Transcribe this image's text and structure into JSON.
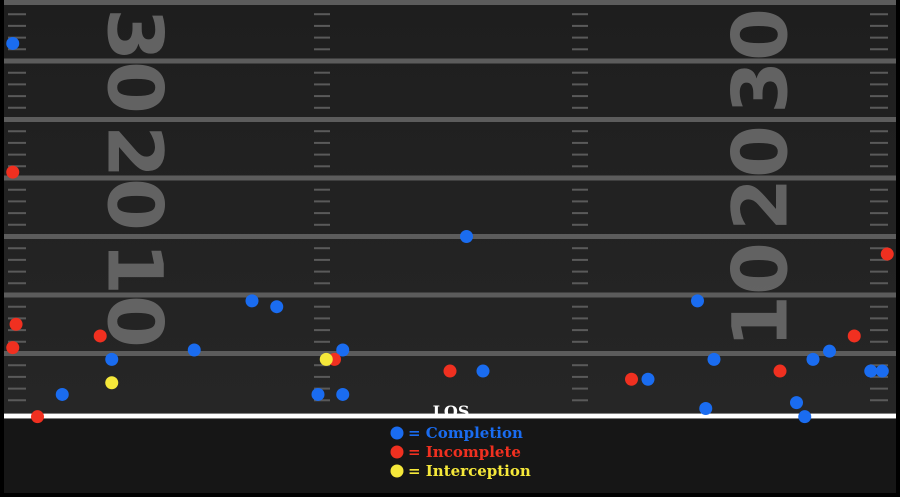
{
  "chart_data": {
    "type": "scatter",
    "title": "",
    "xlabel": "",
    "ylabel": "",
    "xlim": [
      -27,
      27
    ],
    "ylim": [
      0,
      35
    ],
    "x_unit": "yards from center of field",
    "y_unit": "yards downfield from line of scrimmage",
    "field": {
      "los_label": "LOS",
      "yard_lines": [
        5,
        10,
        15,
        20,
        25,
        30,
        35
      ],
      "yard_numbers": [
        {
          "value": "10",
          "yard": 10
        },
        {
          "value": "20",
          "yard": 20
        },
        {
          "value": "30",
          "yard": 30
        }
      ]
    },
    "legend": {
      "placement": "bottom-center",
      "items": [
        {
          "label": "= Completion",
          "color": "#1a6cf0"
        },
        {
          "label": "= Incomplete",
          "color": "#f03020"
        },
        {
          "label": "= Interception",
          "color": "#f5e83a"
        }
      ]
    },
    "series": [
      {
        "name": "Completion",
        "color": "#1a6cf0",
        "points": [
          [
            -26.5,
            31.5
          ],
          [
            -23.5,
            1.5
          ],
          [
            -20.5,
            4.5
          ],
          [
            -15.5,
            5.3
          ],
          [
            -12,
            9.5
          ],
          [
            -10.5,
            9
          ],
          [
            -8,
            1.5
          ],
          [
            -6.5,
            5.3
          ],
          [
            -6.5,
            1.5
          ],
          [
            1,
            15
          ],
          [
            2,
            3.5
          ],
          [
            12,
            2.8
          ],
          [
            15,
            9.5
          ],
          [
            15.5,
            0.3
          ],
          [
            16,
            4.5
          ],
          [
            21,
            0.8
          ],
          [
            21.5,
            -0.4
          ],
          [
            22,
            4.5
          ],
          [
            23,
            5.2
          ],
          [
            25.5,
            3.5
          ],
          [
            26.2,
            3.5
          ]
        ]
      },
      {
        "name": "Incomplete",
        "color": "#f03020",
        "points": [
          [
            -26.5,
            20.5
          ],
          [
            -26.3,
            7.5
          ],
          [
            -26.5,
            5.5
          ],
          [
            -25,
            -0.4
          ],
          [
            -21.2,
            6.5
          ],
          [
            -7,
            4.5
          ],
          [
            0,
            3.5
          ],
          [
            11,
            2.8
          ],
          [
            20,
            3.5
          ],
          [
            24.5,
            6.5
          ],
          [
            26.5,
            13.5
          ]
        ]
      },
      {
        "name": "Interception",
        "color": "#f5e83a",
        "points": [
          [
            -20.5,
            2.5
          ],
          [
            -7.5,
            4.5
          ]
        ]
      }
    ]
  }
}
